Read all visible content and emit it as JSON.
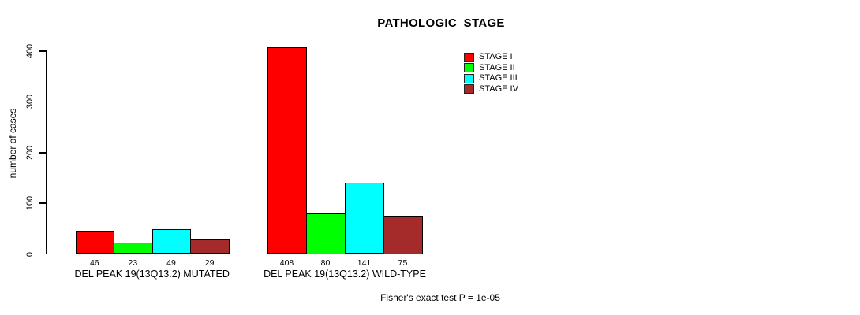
{
  "title": "PATHOLOGIC_STAGE",
  "y_axis": {
    "label": "number of cases",
    "ticks": [
      "0",
      "100",
      "200",
      "300",
      "400"
    ]
  },
  "legend": {
    "items": [
      {
        "label": "STAGE I",
        "color": "#FF0000"
      },
      {
        "label": "STAGE II",
        "color": "#00FF00"
      },
      {
        "label": "STAGE III",
        "color": "#00FFFF"
      },
      {
        "label": "STAGE IV",
        "color": "#A52A2A"
      }
    ]
  },
  "footer": {
    "stat_text": "Fisher's exact test P = 1e-05"
  },
  "chart_data": {
    "type": "bar",
    "title": "PATHOLOGIC_STAGE",
    "xlabel": "",
    "ylabel": "number of cases",
    "ylim": [
      0,
      400
    ],
    "yticks": [
      0,
      100,
      200,
      300,
      400
    ],
    "grid": false,
    "legend_position": "top-right",
    "series": [
      "STAGE I",
      "STAGE II",
      "STAGE III",
      "STAGE IV"
    ],
    "colors": [
      "#FF0000",
      "#00FF00",
      "#00FFFF",
      "#A52A2A"
    ],
    "groups": [
      {
        "label": "DEL PEAK 19(13Q13.2) MUTATED",
        "values": [
          46,
          23,
          49,
          29
        ],
        "value_labels": [
          "46",
          "23",
          "49",
          "29"
        ]
      },
      {
        "label": "DEL PEAK 19(13Q13.2) WILD-TYPE",
        "values": [
          408,
          80,
          141,
          75
        ],
        "value_labels": [
          "408",
          "80",
          "141",
          "75"
        ]
      }
    ],
    "annotation": "Fisher's exact test P = 1e-05"
  }
}
